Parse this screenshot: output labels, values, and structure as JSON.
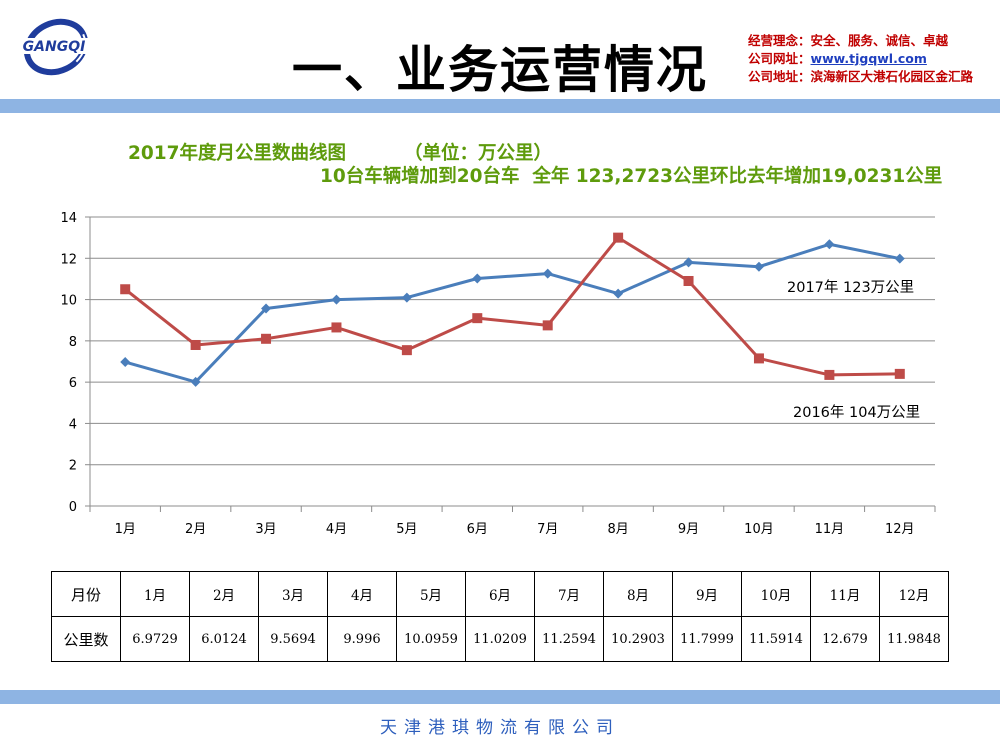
{
  "header": {
    "logo_text": "GANGQI",
    "title": "一、业务运营情况",
    "info": [
      {
        "label": "经营理念：",
        "value": "安全、服务、诚信、卓越"
      },
      {
        "label": "公司网址：",
        "value": "www.tjgqwl.com"
      },
      {
        "label": "公司地址：",
        "value": "滨海新区大港石化园区金汇路"
      }
    ]
  },
  "chart_title_line1": "2017年度月公里数曲线图         （单位：万公里）",
  "chart_title_line2": "10台车辆增加到20台车  全年 123,2723公里环比去年增加19,0231公里",
  "chart_data": {
    "type": "line",
    "categories": [
      "1月",
      "2月",
      "3月",
      "4月",
      "5月",
      "6月",
      "7月",
      "8月",
      "9月",
      "10月",
      "11月",
      "12月"
    ],
    "series": [
      {
        "name": "2017年  123万公里",
        "color": "#4a7ebb",
        "marker": "diamond",
        "values": [
          6.9729,
          6.0124,
          9.5694,
          9.996,
          10.0959,
          11.0209,
          11.2594,
          10.2903,
          11.7999,
          11.5914,
          12.679,
          11.9848
        ]
      },
      {
        "name": "2016年  104万公里",
        "color": "#be4b48",
        "marker": "square",
        "values": [
          10.5,
          7.8,
          8.1,
          8.65,
          7.55,
          9.1,
          8.75,
          13.0,
          10.9,
          7.15,
          6.35,
          6.4
        ]
      }
    ],
    "ylim": [
      0,
      14
    ],
    "yticks": [
      0,
      2,
      4,
      6,
      8,
      10,
      12,
      14
    ],
    "grid": true
  },
  "table": {
    "row1_header": "月份",
    "row2_header": "公里数",
    "months": [
      "1月",
      "2月",
      "3月",
      "4月",
      "5月",
      "6月",
      "7月",
      "8月",
      "9月",
      "10月",
      "11月",
      "12月"
    ],
    "values": [
      "6.9729",
      "6.0124",
      "9.5694",
      "9.996",
      "10.0959",
      "11.0209",
      "11.2594",
      "10.2903",
      "11.7999",
      "11.5914",
      "12.679",
      "11.9848"
    ]
  },
  "footer": "天津港琪物流有限公司"
}
